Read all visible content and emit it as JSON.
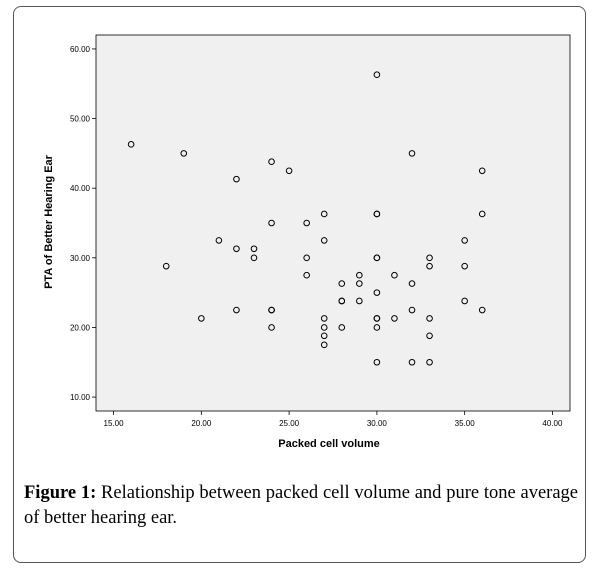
{
  "caption": {
    "label": "Figure 1:",
    "text": " Relationship between packed cell volume and pure tone average of better hearing ear."
  },
  "chart_data": {
    "type": "scatter",
    "title": "",
    "xlabel": "Packed cell volume",
    "ylabel": "PTA of Better Hearing Ear",
    "xlim": [
      14.0,
      41.0
    ],
    "ylim": [
      8.0,
      62.0
    ],
    "x_ticks": [
      15,
      20,
      25,
      30,
      35,
      40
    ],
    "x_tick_labels": [
      "15.00",
      "20.00",
      "25.00",
      "30.00",
      "35.00",
      "40.00"
    ],
    "y_ticks": [
      10,
      20,
      30,
      40,
      50,
      60
    ],
    "y_tick_labels": [
      "10.00",
      "20.00",
      "30.00",
      "40.00",
      "50.00",
      "60.00"
    ],
    "grid": false,
    "colors": {
      "plot_background": "#f0f0f0",
      "marker_stroke": "#000000"
    },
    "points": [
      {
        "x": 16,
        "y": 46.3
      },
      {
        "x": 18,
        "y": 28.8
      },
      {
        "x": 19,
        "y": 45.0
      },
      {
        "x": 20,
        "y": 21.3
      },
      {
        "x": 21,
        "y": 32.5
      },
      {
        "x": 22,
        "y": 41.3
      },
      {
        "x": 22,
        "y": 31.3
      },
      {
        "x": 22,
        "y": 22.5
      },
      {
        "x": 23,
        "y": 31.3
      },
      {
        "x": 23,
        "y": 30.0
      },
      {
        "x": 24,
        "y": 43.8
      },
      {
        "x": 24,
        "y": 35.0
      },
      {
        "x": 24,
        "y": 22.5
      },
      {
        "x": 24,
        "y": 22.5
      },
      {
        "x": 24,
        "y": 20.0
      },
      {
        "x": 25,
        "y": 42.5
      },
      {
        "x": 26,
        "y": 35.0
      },
      {
        "x": 26,
        "y": 30.0
      },
      {
        "x": 26,
        "y": 27.5
      },
      {
        "x": 27,
        "y": 36.3
      },
      {
        "x": 27,
        "y": 32.5
      },
      {
        "x": 27,
        "y": 21.3
      },
      {
        "x": 27,
        "y": 20.0
      },
      {
        "x": 27,
        "y": 18.8
      },
      {
        "x": 27,
        "y": 17.5
      },
      {
        "x": 28,
        "y": 26.3
      },
      {
        "x": 28,
        "y": 23.8
      },
      {
        "x": 28,
        "y": 23.8
      },
      {
        "x": 28,
        "y": 20.0
      },
      {
        "x": 29,
        "y": 27.5
      },
      {
        "x": 29,
        "y": 26.3
      },
      {
        "x": 29,
        "y": 23.8
      },
      {
        "x": 30,
        "y": 56.3
      },
      {
        "x": 30,
        "y": 36.3
      },
      {
        "x": 30,
        "y": 36.3
      },
      {
        "x": 30,
        "y": 30.0
      },
      {
        "x": 30,
        "y": 30.0
      },
      {
        "x": 30,
        "y": 25.0
      },
      {
        "x": 30,
        "y": 21.3
      },
      {
        "x": 30,
        "y": 21.3
      },
      {
        "x": 30,
        "y": 20.0
      },
      {
        "x": 30,
        "y": 15.0
      },
      {
        "x": 31,
        "y": 27.5
      },
      {
        "x": 31,
        "y": 21.3
      },
      {
        "x": 32,
        "y": 45.0
      },
      {
        "x": 32,
        "y": 26.3
      },
      {
        "x": 32,
        "y": 22.5
      },
      {
        "x": 32,
        "y": 15.0
      },
      {
        "x": 33,
        "y": 30.0
      },
      {
        "x": 33,
        "y": 28.8
      },
      {
        "x": 33,
        "y": 21.3
      },
      {
        "x": 33,
        "y": 18.8
      },
      {
        "x": 33,
        "y": 15.0
      },
      {
        "x": 35,
        "y": 32.5
      },
      {
        "x": 35,
        "y": 28.8
      },
      {
        "x": 35,
        "y": 23.8
      },
      {
        "x": 36,
        "y": 42.5
      },
      {
        "x": 36,
        "y": 36.3
      },
      {
        "x": 36,
        "y": 22.5
      }
    ]
  }
}
